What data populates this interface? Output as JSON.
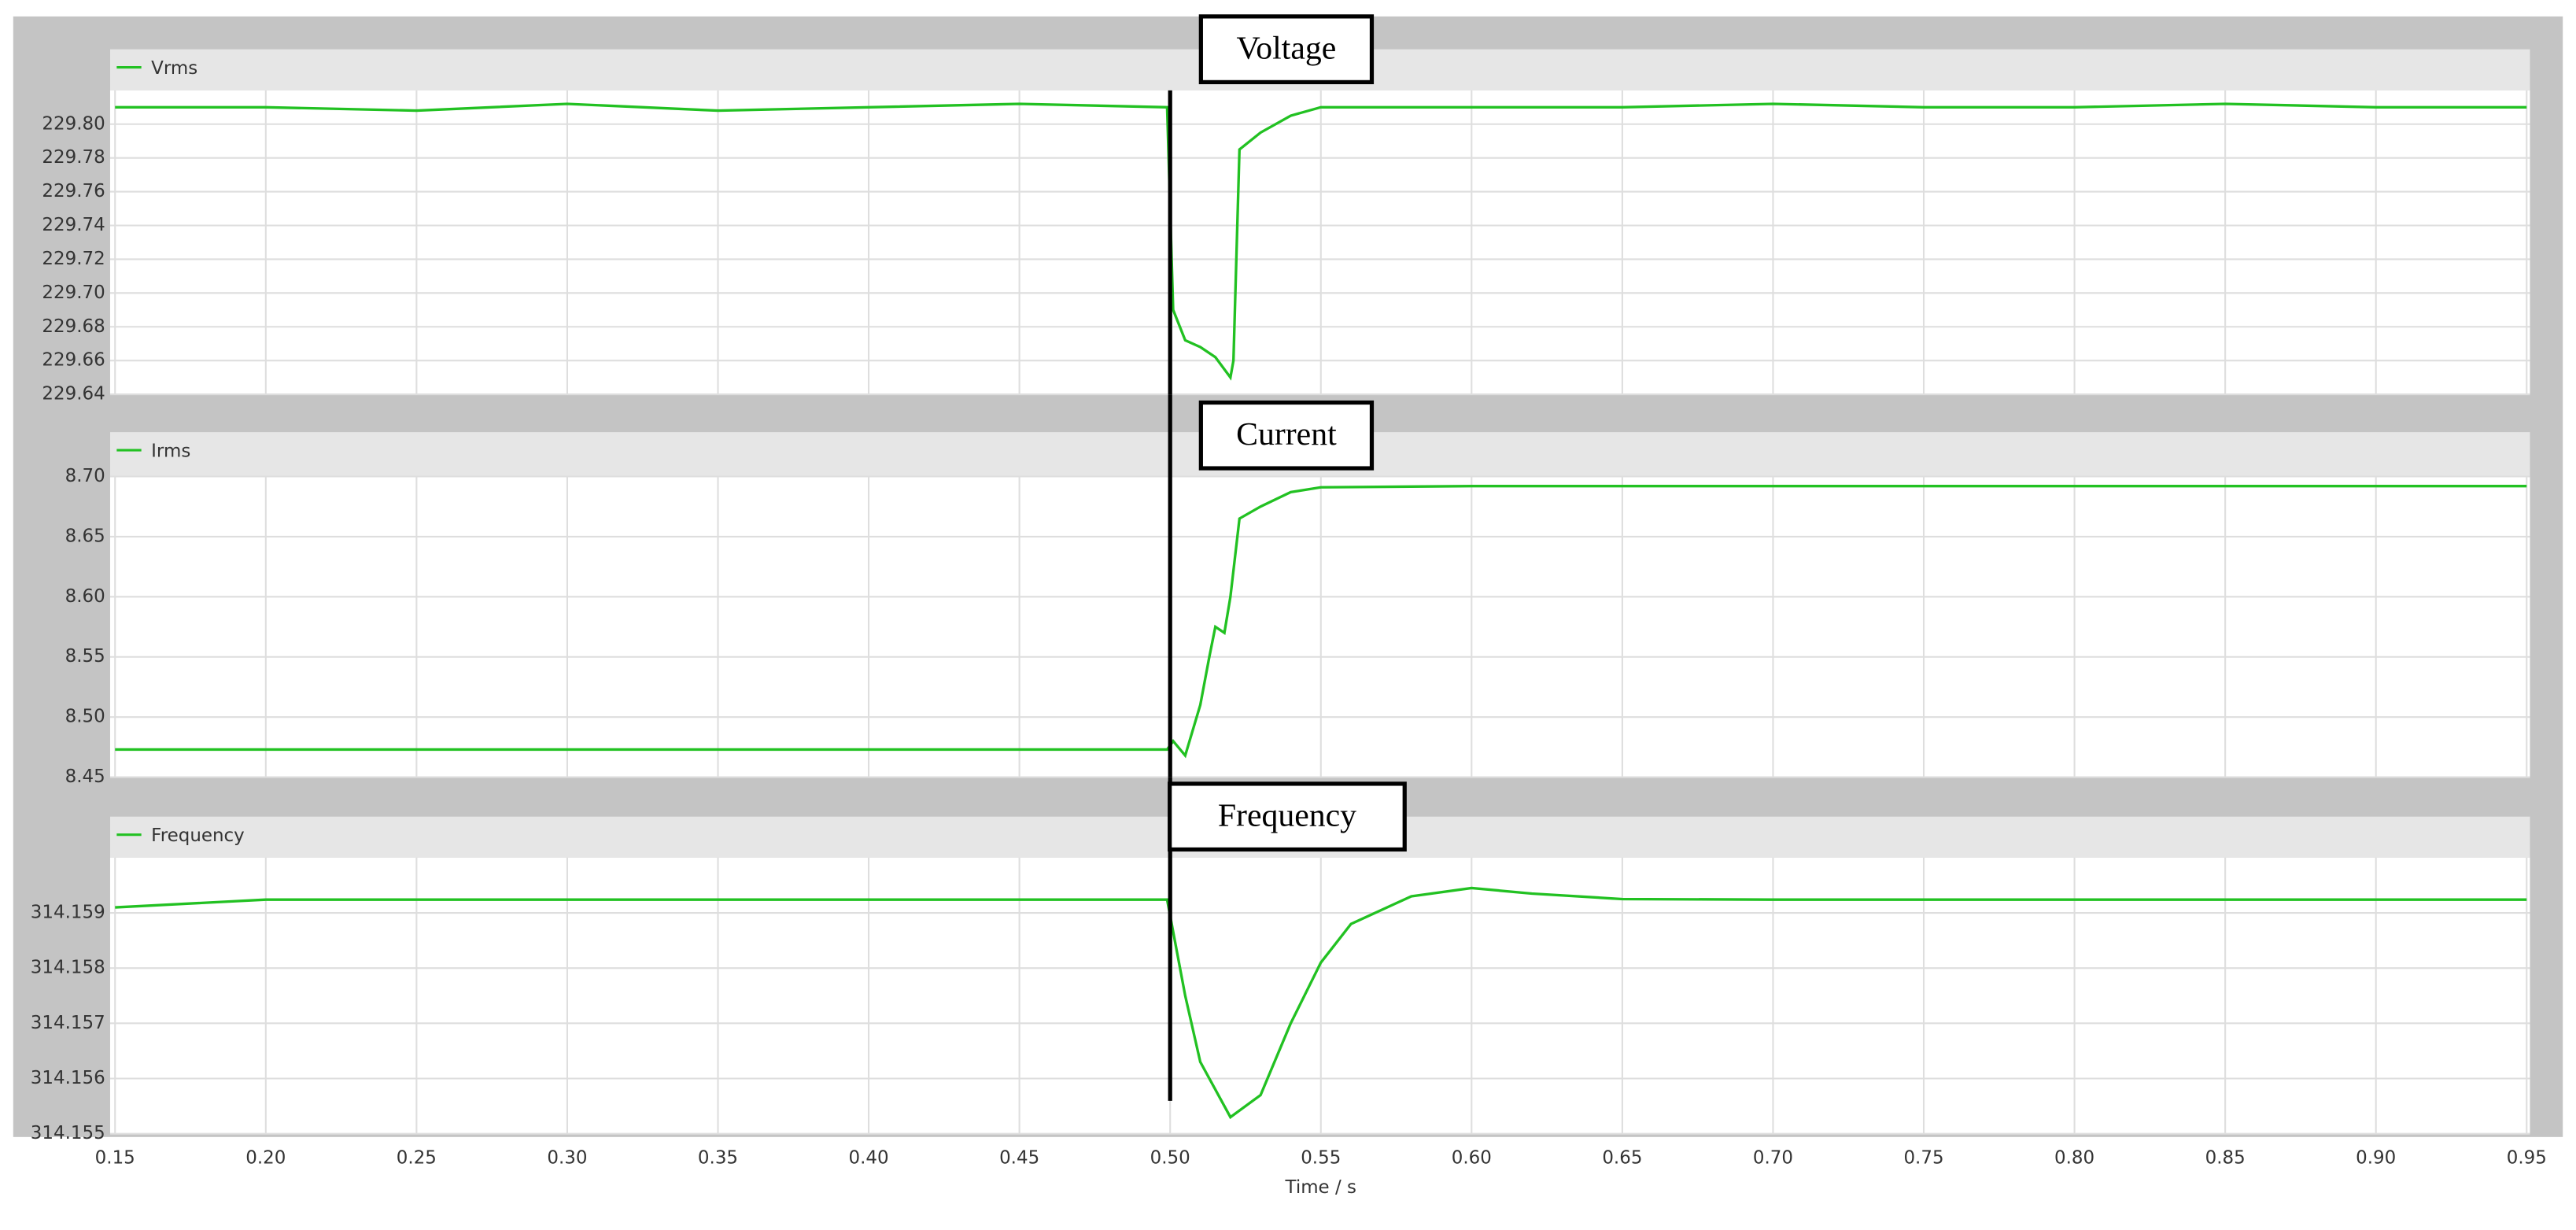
{
  "chart_data": [
    {
      "type": "line",
      "annotation": "Voltage",
      "vline": 0.5,
      "x": [
        0.15,
        0.2,
        0.25,
        0.3,
        0.35,
        0.4,
        0.45,
        0.499,
        0.501,
        0.505,
        0.51,
        0.515,
        0.52,
        0.521,
        0.523,
        0.53,
        0.54,
        0.55,
        0.6,
        0.65,
        0.7,
        0.75,
        0.8,
        0.85,
        0.9,
        0.95
      ],
      "series": [
        {
          "name": "Vrms",
          "color": "#22c122",
          "values": [
            229.81,
            229.81,
            229.808,
            229.812,
            229.808,
            229.81,
            229.812,
            229.81,
            229.69,
            229.672,
            229.668,
            229.662,
            229.65,
            229.66,
            229.785,
            229.795,
            229.805,
            229.81,
            229.81,
            229.81,
            229.812,
            229.81,
            229.81,
            229.812,
            229.81,
            229.81
          ]
        }
      ],
      "ylim": [
        229.64,
        229.82
      ],
      "yticks": [
        229.64,
        229.66,
        229.68,
        {
          "value": 229.7,
          "label": "229.70"
        },
        229.72,
        229.74,
        229.76,
        229.78,
        {
          "value": 229.8,
          "label": "229.80"
        }
      ]
    },
    {
      "type": "line",
      "annotation": "Current",
      "vline": 0.5,
      "x": [
        0.15,
        0.2,
        0.25,
        0.3,
        0.35,
        0.4,
        0.45,
        0.499,
        0.501,
        0.505,
        0.51,
        0.513,
        0.515,
        0.518,
        0.52,
        0.523,
        0.53,
        0.54,
        0.55,
        0.6,
        0.65,
        0.7,
        0.75,
        0.8,
        0.85,
        0.9,
        0.95
      ],
      "series": [
        {
          "name": "Irms",
          "color": "#22c122",
          "values": [
            8.473,
            8.473,
            8.473,
            8.473,
            8.473,
            8.473,
            8.473,
            8.473,
            8.48,
            8.468,
            8.51,
            8.55,
            8.575,
            8.57,
            8.6,
            8.665,
            8.675,
            8.687,
            8.691,
            8.692,
            8.692,
            8.692,
            8.692,
            8.692,
            8.692,
            8.692,
            8.692
          ]
        }
      ],
      "ylim": [
        8.45,
        8.7
      ],
      "yticks": [
        8.45,
        {
          "value": 8.5,
          "label": "8.50"
        },
        8.55,
        {
          "value": 8.6,
          "label": "8.60"
        },
        8.65,
        {
          "value": 8.7,
          "label": "8.70"
        }
      ]
    },
    {
      "type": "line",
      "annotation": "Frequency",
      "vline": 0.5,
      "x": [
        0.15,
        0.2,
        0.25,
        0.3,
        0.35,
        0.4,
        0.45,
        0.499,
        0.505,
        0.51,
        0.52,
        0.53,
        0.54,
        0.55,
        0.56,
        0.58,
        0.6,
        0.62,
        0.65,
        0.7,
        0.75,
        0.8,
        0.85,
        0.9,
        0.95
      ],
      "series": [
        {
          "name": "Frequency",
          "color": "#22c122",
          "values": [
            314.1591,
            314.15924,
            314.15924,
            314.15924,
            314.15924,
            314.15924,
            314.15924,
            314.15924,
            314.1575,
            314.1563,
            314.1553,
            314.1557,
            314.157,
            314.1581,
            314.1588,
            314.1593,
            314.15945,
            314.15935,
            314.15925,
            314.15924,
            314.15924,
            314.15924,
            314.15924,
            314.15924,
            314.15924
          ]
        }
      ],
      "ylim": [
        314.155,
        314.16
      ],
      "yticks": [
        314.155,
        314.156,
        314.157,
        314.158,
        314.159
      ],
      "xlim": [
        0.15,
        0.95
      ],
      "xticks": [
        0.15,
        {
          "value": 0.2,
          "label": "0.20"
        },
        0.25,
        {
          "value": 0.3,
          "label": "0.30"
        },
        0.35,
        {
          "value": 0.4,
          "label": "0.40"
        },
        0.45,
        {
          "value": 0.5,
          "label": "0.50"
        },
        0.55,
        {
          "value": 0.6,
          "label": "0.60"
        },
        0.65,
        {
          "value": 0.7,
          "label": "0.70"
        },
        0.75,
        {
          "value": 0.8,
          "label": "0.80"
        },
        0.85,
        {
          "value": 0.9,
          "label": "0.90"
        },
        0.95
      ],
      "xlabel": "Time / s"
    }
  ]
}
